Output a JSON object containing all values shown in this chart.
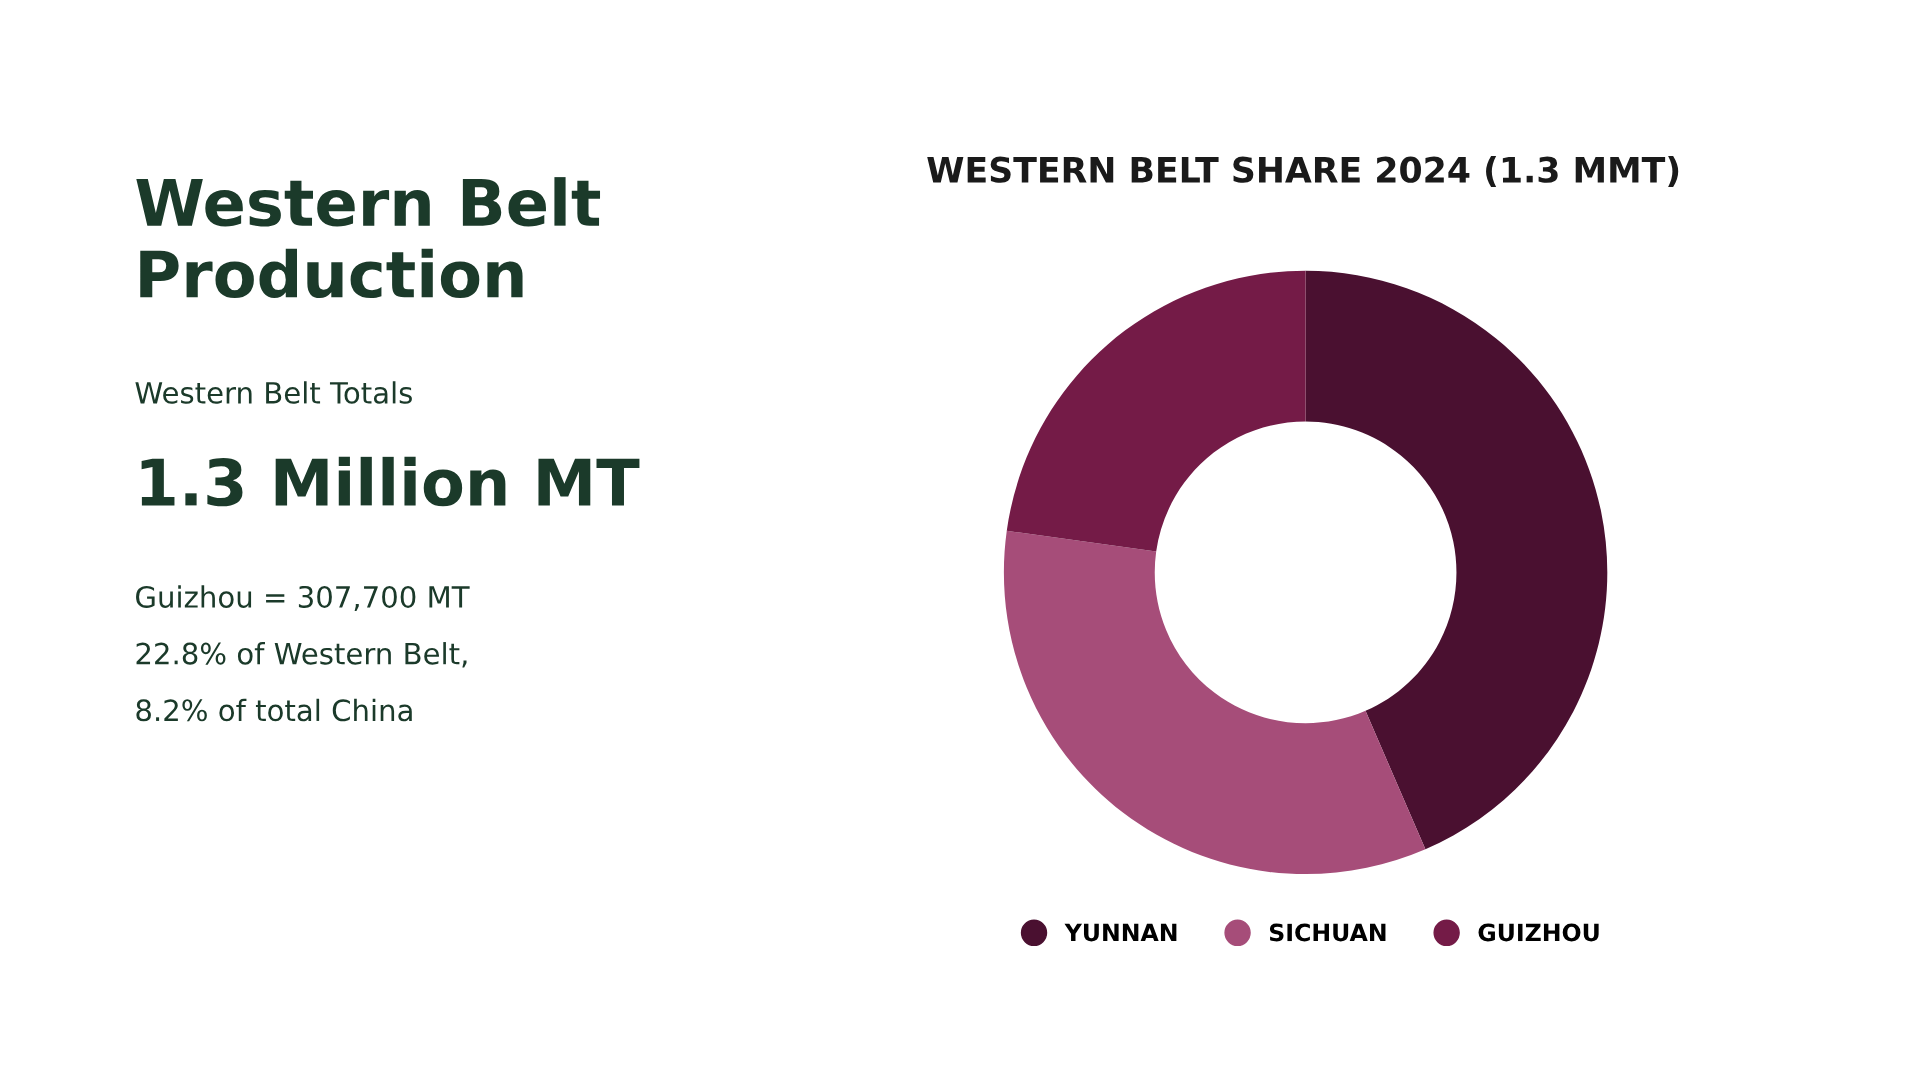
{
  "chart_data": [
    {
      "type": "other",
      "title": "Western Belt Production",
      "subtitle": "Western Belt Totals",
      "annotations": [
        "1.3 Million MT",
        "Guizhou = 307,700 MT",
        "22.8% of Western Belt,",
        "8.2% of total China"
      ]
    },
    {
      "type": "donut",
      "title": "WESTERN BELT SHARE 2024 (1.3 MMT)",
      "categories": [
        "YUNNAN",
        "SICHUAN",
        "GUIZHOU"
      ],
      "values": [
        43.5,
        33.7,
        22.8
      ],
      "colors": [
        "#4a1030",
        "#a64d79",
        "#741b47"
      ],
      "legend": "bottom"
    }
  ]
}
